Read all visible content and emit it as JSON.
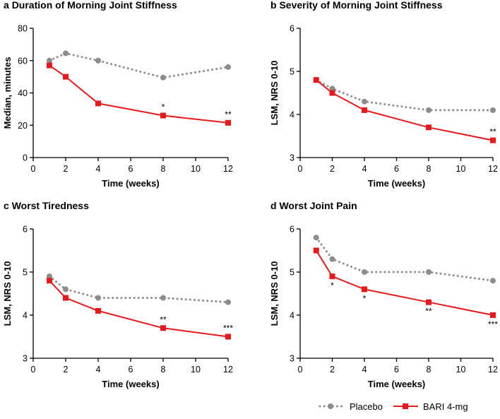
{
  "chart_data": [
    {
      "type": "line",
      "panel_letter": "a",
      "title": "Duration of Morning Joint Stiffness",
      "xlabel": "Time (weeks)",
      "ylabel": "Median, minutes",
      "xlim": [
        0,
        12
      ],
      "ylim": [
        0,
        80
      ],
      "xticks": [
        0,
        2,
        4,
        6,
        8,
        10,
        12
      ],
      "yticks": [
        0,
        20,
        40,
        60,
        80
      ],
      "series": [
        {
          "name": "Placebo",
          "style": "dotted-circle",
          "color": "#8c8c8c",
          "x": [
            1,
            2,
            4,
            8,
            12
          ],
          "values": [
            60,
            64.5,
            60,
            49.5,
            56
          ]
        },
        {
          "name": "BARI 4-mg",
          "style": "solid-square",
          "color": "#e8191c",
          "x": [
            1,
            2,
            4,
            8,
            12
          ],
          "values": [
            57,
            50,
            33.5,
            26,
            21.5
          ],
          "significance": [
            {
              "x": 8,
              "label": "*"
            },
            {
              "x": 12,
              "label": "**"
            }
          ]
        }
      ]
    },
    {
      "type": "line",
      "panel_letter": "b",
      "title": "Severity of Morning Joint Stiffness",
      "xlabel": "Time (weeks)",
      "ylabel": "LSM, NRS 0-10",
      "xlim": [
        0,
        12
      ],
      "ylim": [
        3,
        6
      ],
      "xticks": [
        0,
        2,
        4,
        6,
        8,
        10,
        12
      ],
      "yticks": [
        3,
        4,
        5,
        6
      ],
      "series": [
        {
          "name": "Placebo",
          "style": "dotted-circle",
          "color": "#8c8c8c",
          "x": [
            1,
            2,
            4,
            8,
            12
          ],
          "values": [
            4.8,
            4.6,
            4.3,
            4.1,
            4.1
          ]
        },
        {
          "name": "BARI 4-mg",
          "style": "solid-square",
          "color": "#e8191c",
          "x": [
            1,
            2,
            4,
            8,
            12
          ],
          "values": [
            4.8,
            4.5,
            4.1,
            3.7,
            3.4
          ],
          "significance": [
            {
              "x": 12,
              "label": "**"
            }
          ]
        }
      ]
    },
    {
      "type": "line",
      "panel_letter": "c",
      "title": "Worst Tiredness",
      "xlabel": "Time (weeks)",
      "ylabel": "LSM, NRS 0-10",
      "xlim": [
        0,
        12
      ],
      "ylim": [
        3,
        6
      ],
      "xticks": [
        0,
        2,
        4,
        6,
        8,
        10,
        12
      ],
      "yticks": [
        3,
        4,
        5,
        6
      ],
      "series": [
        {
          "name": "Placebo",
          "style": "dotted-circle",
          "color": "#8c8c8c",
          "x": [
            1,
            2,
            4,
            8,
            12
          ],
          "values": [
            4.9,
            4.6,
            4.4,
            4.4,
            4.3
          ]
        },
        {
          "name": "BARI 4-mg",
          "style": "solid-square",
          "color": "#e8191c",
          "x": [
            1,
            2,
            4,
            8,
            12
          ],
          "values": [
            4.8,
            4.4,
            4.1,
            3.7,
            3.5
          ],
          "significance": [
            {
              "x": 8,
              "label": "**"
            },
            {
              "x": 12,
              "label": "***"
            }
          ]
        }
      ]
    },
    {
      "type": "line",
      "panel_letter": "d",
      "title": "Worst Joint Pain",
      "xlabel": "Time (weeks)",
      "ylabel": "LSM, NRS 0-10",
      "xlim": [
        0,
        12
      ],
      "ylim": [
        3,
        6
      ],
      "xticks": [
        0,
        2,
        4,
        6,
        8,
        10,
        12
      ],
      "yticks": [
        3,
        4,
        5,
        6
      ],
      "series": [
        {
          "name": "Placebo",
          "style": "dotted-circle",
          "color": "#8c8c8c",
          "x": [
            1,
            2,
            4,
            8,
            12
          ],
          "values": [
            5.8,
            5.3,
            5.0,
            5.0,
            4.8
          ]
        },
        {
          "name": "BARI 4-mg",
          "style": "solid-square",
          "color": "#e8191c",
          "x": [
            1,
            2,
            4,
            8,
            12
          ],
          "values": [
            5.5,
            4.9,
            4.6,
            4.3,
            4.0
          ],
          "significance": [
            {
              "x": 2,
              "label": "*"
            },
            {
              "x": 4,
              "label": "*"
            },
            {
              "x": 8,
              "label": "**"
            },
            {
              "x": 12,
              "label": "***"
            }
          ]
        }
      ]
    }
  ],
  "legend": {
    "position": "bottom-right",
    "items": [
      {
        "label": "Placebo",
        "style": "dotted-circle",
        "color": "#8c8c8c"
      },
      {
        "label": "BARI 4-mg",
        "style": "solid-square",
        "color": "#e8191c"
      }
    ]
  }
}
